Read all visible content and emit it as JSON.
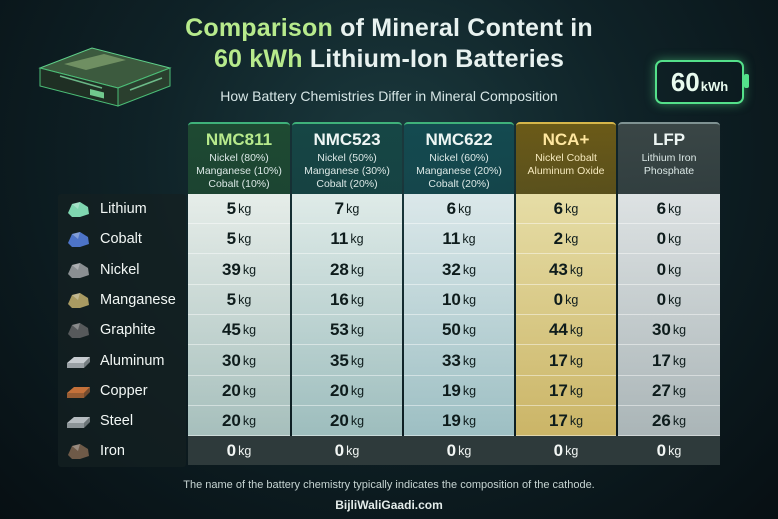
{
  "title": {
    "line1_a": "Comparison",
    "line1_b": " of Mineral Content in",
    "line2_a": "60 kWh",
    "line2_b": " Lithium-Ion Batteries"
  },
  "subtitle": "How Battery Chemistries Differ in Mineral Composition",
  "badge": {
    "value": "60",
    "unit": "kWh"
  },
  "footnote": "The name of the battery chemistry typically indicates the composition of the cathode.",
  "watermark": "BijliWaliGaadi.com",
  "colors": {
    "col_headers": [
      "#1e4a32",
      "#164645",
      "#144a50",
      "#6b5a18",
      "#3a4646"
    ],
    "col_cells_top": [
      "#e6ede9",
      "#dfebe8",
      "#dbe8ea",
      "#e6dda6",
      "#dde2e3"
    ],
    "col_cells_bottom": [
      "#a6bfbc",
      "#9dbdbd",
      "#9dbfc3",
      "#cbb567",
      "#aab5b7"
    ],
    "accent": "#b7ea8c"
  },
  "chart_data": {
    "type": "table",
    "unit": "kg",
    "columns": [
      {
        "name": "NMC811",
        "detail": [
          "Nickel (80%)",
          "Manganese (10%)",
          "Cobalt (10%)"
        ]
      },
      {
        "name": "NMC523",
        "detail": [
          "Nickel (50%)",
          "Manganese (30%)",
          "Cobalt (20%)"
        ]
      },
      {
        "name": "NMC622",
        "detail": [
          "Nickel (60%)",
          "Manganese (20%)",
          "Cobalt (20%)"
        ]
      },
      {
        "name": "NCA+",
        "detail": [
          "Nickel Cobalt",
          "Aluminum Oxide"
        ]
      },
      {
        "name": "LFP",
        "detail": [
          "Lithium Iron",
          "Phosphate"
        ]
      }
    ],
    "rows": [
      {
        "mineral": "Lithium",
        "icon": "lithium-ore-icon",
        "values": [
          5,
          7,
          6,
          6,
          6
        ]
      },
      {
        "mineral": "Cobalt",
        "icon": "cobalt-ore-icon",
        "values": [
          5,
          11,
          11,
          2,
          0
        ]
      },
      {
        "mineral": "Nickel",
        "icon": "nickel-ore-icon",
        "values": [
          39,
          28,
          32,
          43,
          0
        ]
      },
      {
        "mineral": "Manganese",
        "icon": "manganese-ore-icon",
        "values": [
          5,
          16,
          10,
          0,
          0
        ]
      },
      {
        "mineral": "Graphite",
        "icon": "graphite-icon",
        "values": [
          45,
          53,
          50,
          44,
          30
        ]
      },
      {
        "mineral": "Aluminum",
        "icon": "aluminum-ingot-icon",
        "values": [
          30,
          35,
          33,
          17,
          17
        ]
      },
      {
        "mineral": "Copper",
        "icon": "copper-ingot-icon",
        "values": [
          20,
          20,
          19,
          17,
          27
        ]
      },
      {
        "mineral": "Steel",
        "icon": "steel-bars-icon",
        "values": [
          20,
          20,
          19,
          17,
          26
        ]
      },
      {
        "mineral": "Iron",
        "icon": "iron-ore-icon",
        "values": [
          0,
          0,
          0,
          0,
          0
        ]
      }
    ]
  }
}
